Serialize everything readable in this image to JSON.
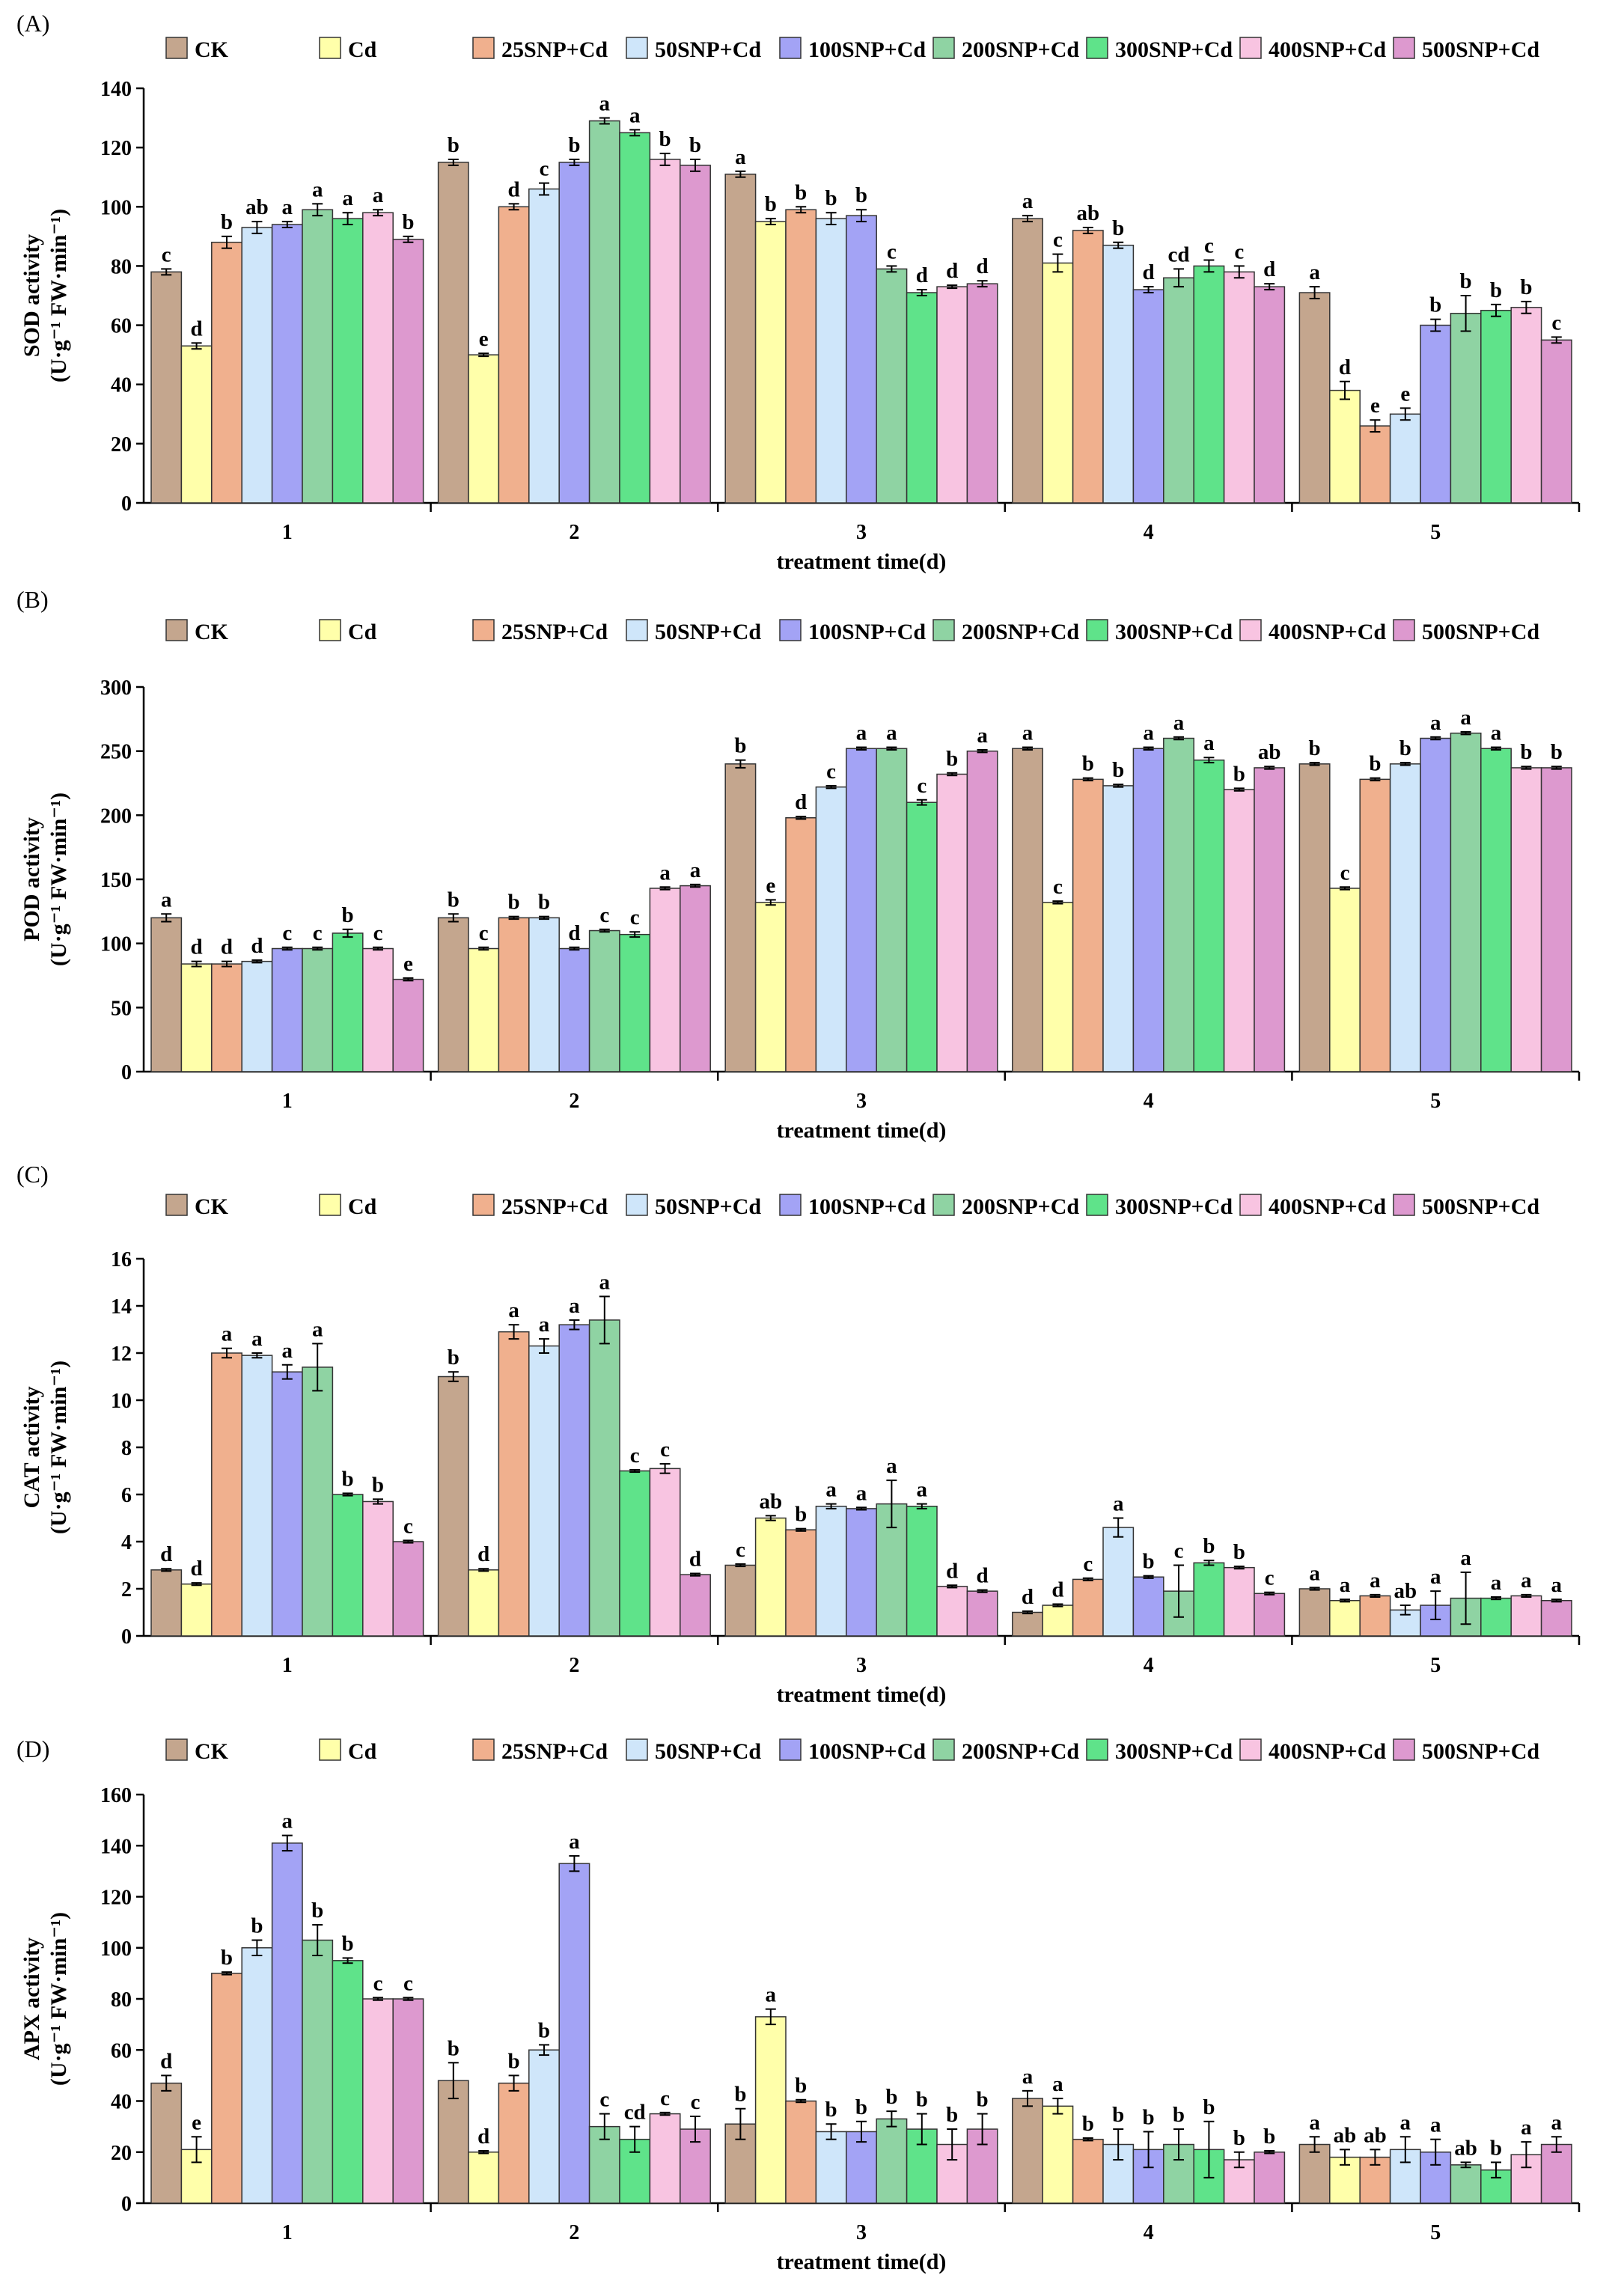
{
  "series_colors": {
    "CK": "#C4A68E",
    "Cd": "#FFFFAA",
    "25SNP+Cd": "#F0B08E",
    "50SNP+Cd": "#CFE6FA",
    "100SNP+Cd": "#A3A3F5",
    "200SNP+Cd": "#8FD3A3",
    "300SNP+Cd": "#5FE38A",
    "400SNP+Cd": "#F8C4E1",
    "500SNP+Cd": "#DD99CF"
  },
  "chart_data": [
    {
      "type": "bar",
      "panel_label": "(A)",
      "ylabel_line1": "SOD  activity",
      "ylabel_line2": "(U·g⁻¹ FW·min⁻¹)",
      "xlabel": "treatment time(d)",
      "categories": [
        "1",
        "2",
        "3",
        "4",
        "5"
      ],
      "ylim": [
        0,
        140
      ],
      "yticks": [
        "0",
        "20",
        "40",
        "60",
        "80",
        "100",
        "120",
        "140"
      ],
      "grid": false,
      "legend": "top",
      "series": [
        {
          "name": "CK",
          "values": [
            78,
            115,
            111,
            96,
            71
          ],
          "errors": [
            1,
            1,
            1,
            1,
            2
          ],
          "sig": [
            "c",
            "b",
            "a",
            "a",
            "a"
          ]
        },
        {
          "name": "Cd",
          "values": [
            53,
            50,
            95,
            81,
            38
          ],
          "errors": [
            1,
            0.5,
            1,
            3,
            3
          ],
          "sig": [
            "d",
            "e",
            "b",
            "c",
            "d"
          ]
        },
        {
          "name": "25SNP+Cd",
          "values": [
            88,
            100,
            99,
            92,
            26
          ],
          "errors": [
            2,
            1,
            1,
            1,
            2
          ],
          "sig": [
            "b",
            "d",
            "b",
            "ab",
            "e"
          ]
        },
        {
          "name": "50SNP+Cd",
          "values": [
            93,
            106,
            96,
            87,
            30
          ],
          "errors": [
            2,
            2,
            2,
            1,
            2
          ],
          "sig": [
            "ab",
            "c",
            "b",
            "b",
            "e"
          ]
        },
        {
          "name": "100SNP+Cd",
          "values": [
            94,
            115,
            97,
            72,
            60
          ],
          "errors": [
            1,
            1,
            2,
            1,
            2
          ],
          "sig": [
            "a",
            "b",
            "b",
            "d",
            "b"
          ]
        },
        {
          "name": "200SNP+Cd",
          "values": [
            99,
            129,
            79,
            76,
            64
          ],
          "errors": [
            2,
            1,
            1,
            3,
            6
          ],
          "sig": [
            "a",
            "a",
            "c",
            "cd",
            "b"
          ]
        },
        {
          "name": "300SNP+Cd",
          "values": [
            96,
            125,
            71,
            80,
            65
          ],
          "errors": [
            2,
            1,
            1,
            2,
            2
          ],
          "sig": [
            "a",
            "a",
            "d",
            "c",
            "b"
          ]
        },
        {
          "name": "400SNP+Cd",
          "values": [
            98,
            116,
            73,
            78,
            66
          ],
          "errors": [
            1,
            2,
            0.5,
            2,
            2
          ],
          "sig": [
            "a",
            "b",
            "d",
            "c",
            "b"
          ]
        },
        {
          "name": "500SNP+Cd",
          "values": [
            89,
            114,
            74,
            73,
            55
          ],
          "errors": [
            1,
            2,
            1,
            1,
            1
          ],
          "sig": [
            "b",
            "b",
            "d",
            "d",
            "c"
          ]
        }
      ]
    },
    {
      "type": "bar",
      "panel_label": "(B)",
      "ylabel_line1": "POD  activity",
      "ylabel_line2": "(U·g⁻¹ FW·min⁻¹)",
      "xlabel": "treatment time(d)",
      "categories": [
        "1",
        "2",
        "3",
        "4",
        "5"
      ],
      "ylim": [
        0,
        300
      ],
      "yticks": [
        "0",
        "50",
        "100",
        "150",
        "200",
        "250",
        "300"
      ],
      "grid": false,
      "legend": "top",
      "series": [
        {
          "name": "CK",
          "values": [
            120,
            120,
            240,
            252,
            240
          ],
          "errors": [
            3,
            3,
            3,
            1,
            1
          ],
          "sig": [
            "a",
            "b",
            "b",
            "a",
            "b"
          ]
        },
        {
          "name": "Cd",
          "values": [
            84,
            96,
            132,
            132,
            143
          ],
          "errors": [
            2,
            1,
            2,
            1,
            1
          ],
          "sig": [
            "d",
            "c",
            "e",
            "c",
            "c"
          ]
        },
        {
          "name": "25SNP+Cd",
          "values": [
            84,
            120,
            198,
            228,
            228
          ],
          "errors": [
            2,
            1,
            1,
            1,
            1
          ],
          "sig": [
            "d",
            "b",
            "d",
            "b",
            "b"
          ]
        },
        {
          "name": "50SNP+Cd",
          "values": [
            86,
            120,
            222,
            223,
            240
          ],
          "errors": [
            1,
            1,
            1,
            1,
            1
          ],
          "sig": [
            "d",
            "b",
            "c",
            "b",
            "b"
          ]
        },
        {
          "name": "100SNP+Cd",
          "values": [
            96,
            96,
            252,
            252,
            260
          ],
          "errors": [
            1,
            1,
            1,
            1,
            1
          ],
          "sig": [
            "c",
            "d",
            "a",
            "a",
            "a"
          ]
        },
        {
          "name": "200SNP+Cd",
          "values": [
            96,
            110,
            252,
            260,
            264
          ],
          "errors": [
            1,
            1,
            1,
            1,
            1
          ],
          "sig": [
            "c",
            "c",
            "a",
            "a",
            "a"
          ]
        },
        {
          "name": "300SNP+Cd",
          "values": [
            108,
            107,
            210,
            243,
            252
          ],
          "errors": [
            3,
            2,
            2,
            2,
            1
          ],
          "sig": [
            "b",
            "c",
            "c",
            "a",
            "a"
          ]
        },
        {
          "name": "400SNP+Cd",
          "values": [
            96,
            143,
            232,
            220,
            237
          ],
          "errors": [
            1,
            1,
            1,
            1,
            1
          ],
          "sig": [
            "c",
            "a",
            "b",
            "b",
            "b"
          ]
        },
        {
          "name": "500SNP+Cd",
          "values": [
            72,
            145,
            250,
            237,
            237
          ],
          "errors": [
            1,
            1,
            1,
            1,
            1
          ],
          "sig": [
            "e",
            "a",
            "a",
            "ab",
            "b"
          ]
        }
      ]
    },
    {
      "type": "bar",
      "panel_label": "(C)",
      "ylabel_line1": "CAT activity",
      "ylabel_line2": "(U·g⁻¹ FW·min⁻¹)",
      "xlabel": "treatment time(d)",
      "categories": [
        "1",
        "2",
        "3",
        "4",
        "5"
      ],
      "ylim": [
        0,
        16
      ],
      "yticks": [
        "0",
        "2",
        "4",
        "6",
        "8",
        "10",
        "12",
        "14",
        "16"
      ],
      "grid": false,
      "legend": "top",
      "series": [
        {
          "name": "CK",
          "values": [
            2.8,
            11.0,
            3.0,
            1.0,
            2.0
          ],
          "errors": [
            0.05,
            0.2,
            0.05,
            0.05,
            0.05
          ],
          "sig": [
            "d",
            "b",
            "c",
            "d",
            "a"
          ]
        },
        {
          "name": "Cd",
          "values": [
            2.2,
            2.8,
            5.0,
            1.3,
            1.5
          ],
          "errors": [
            0.05,
            0.05,
            0.1,
            0.05,
            0.05
          ],
          "sig": [
            "d",
            "d",
            "ab",
            "d",
            "a"
          ]
        },
        {
          "name": "25SNP+Cd",
          "values": [
            12.0,
            12.9,
            4.5,
            2.4,
            1.7
          ],
          "errors": [
            0.2,
            0.3,
            0.05,
            0.05,
            0.05
          ],
          "sig": [
            "a",
            "a",
            "b",
            "c",
            "a"
          ]
        },
        {
          "name": "50SNP+Cd",
          "values": [
            11.9,
            12.3,
            5.5,
            4.6,
            1.1
          ],
          "errors": [
            0.1,
            0.3,
            0.1,
            0.4,
            0.2
          ],
          "sig": [
            "a",
            "a",
            "a",
            "a",
            "ab"
          ]
        },
        {
          "name": "100SNP+Cd",
          "values": [
            11.2,
            13.2,
            5.4,
            2.5,
            1.3
          ],
          "errors": [
            0.3,
            0.2,
            0.05,
            0.05,
            0.6
          ],
          "sig": [
            "a",
            "a",
            "a",
            "b",
            "a"
          ]
        },
        {
          "name": "200SNP+Cd",
          "values": [
            11.4,
            13.4,
            5.6,
            1.9,
            1.6
          ],
          "errors": [
            1.0,
            1.0,
            1.0,
            1.1,
            1.1
          ],
          "sig": [
            "a",
            "a",
            "a",
            "c",
            "a"
          ]
        },
        {
          "name": "300SNP+Cd",
          "values": [
            6.0,
            7.0,
            5.5,
            3.1,
            1.6
          ],
          "errors": [
            0.05,
            0.05,
            0.1,
            0.1,
            0.05
          ],
          "sig": [
            "b",
            "c",
            "a",
            "b",
            "a"
          ]
        },
        {
          "name": "400SNP+Cd",
          "values": [
            5.7,
            7.1,
            2.1,
            2.9,
            1.7
          ],
          "errors": [
            0.1,
            0.2,
            0.05,
            0.05,
            0.05
          ],
          "sig": [
            "b",
            "c",
            "d",
            "b",
            "a"
          ]
        },
        {
          "name": "500SNP+Cd",
          "values": [
            4.0,
            2.6,
            1.9,
            1.8,
            1.5
          ],
          "errors": [
            0.05,
            0.05,
            0.05,
            0.05,
            0.05
          ],
          "sig": [
            "c",
            "d",
            "d",
            "c",
            "a"
          ]
        }
      ]
    },
    {
      "type": "bar",
      "panel_label": "(D)",
      "ylabel_line1": "APX activity",
      "ylabel_line2": "(U·g⁻¹ FW·min⁻¹)",
      "xlabel": "treatment time(d)",
      "categories": [
        "1",
        "2",
        "3",
        "4",
        "5"
      ],
      "ylim": [
        0,
        160
      ],
      "yticks": [
        "0",
        "20",
        "40",
        "60",
        "80",
        "100",
        "120",
        "140",
        "160"
      ],
      "grid": false,
      "legend": "top",
      "series": [
        {
          "name": "CK",
          "values": [
            47,
            48,
            31,
            41,
            23
          ],
          "errors": [
            3,
            7,
            6,
            3,
            3
          ],
          "sig": [
            "d",
            "b",
            "b",
            "a",
            "a"
          ]
        },
        {
          "name": "Cd",
          "values": [
            21,
            20,
            73,
            38,
            18
          ],
          "errors": [
            5,
            0.5,
            3,
            3,
            3
          ],
          "sig": [
            "e",
            "d",
            "a",
            "a",
            "ab"
          ]
        },
        {
          "name": "25SNP+Cd",
          "values": [
            90,
            47,
            40,
            25,
            18
          ],
          "errors": [
            0.5,
            3,
            0.5,
            0.5,
            3
          ],
          "sig": [
            "b",
            "b",
            "b",
            "b",
            "ab"
          ]
        },
        {
          "name": "50SNP+Cd",
          "values": [
            100,
            60,
            28,
            23,
            21
          ],
          "errors": [
            3,
            2,
            3,
            6,
            5
          ],
          "sig": [
            "b",
            "b",
            "b",
            "b",
            "a"
          ]
        },
        {
          "name": "100SNP+Cd",
          "values": [
            141,
            133,
            28,
            21,
            20
          ],
          "errors": [
            3,
            3,
            4,
            7,
            5
          ],
          "sig": [
            "a",
            "a",
            "b",
            "b",
            "a"
          ]
        },
        {
          "name": "200SNP+Cd",
          "values": [
            103,
            30,
            33,
            23,
            15
          ],
          "errors": [
            6,
            5,
            3,
            6,
            1
          ],
          "sig": [
            "b",
            "c",
            "b",
            "b",
            "ab"
          ]
        },
        {
          "name": "300SNP+Cd",
          "values": [
            95,
            25,
            29,
            21,
            13
          ],
          "errors": [
            1,
            5,
            6,
            11,
            3
          ],
          "sig": [
            "b",
            "cd",
            "b",
            "b",
            "b"
          ]
        },
        {
          "name": "400SNP+Cd",
          "values": [
            80,
            35,
            23,
            17,
            19
          ],
          "errors": [
            0.5,
            0.5,
            6,
            3,
            5
          ],
          "sig": [
            "c",
            "c",
            "b",
            "b",
            "a"
          ]
        },
        {
          "name": "500SNP+Cd",
          "values": [
            80,
            29,
            29,
            20,
            23
          ],
          "errors": [
            0.5,
            5,
            6,
            0.5,
            3
          ],
          "sig": [
            "c",
            "c",
            "b",
            "b",
            "a"
          ]
        }
      ]
    }
  ]
}
